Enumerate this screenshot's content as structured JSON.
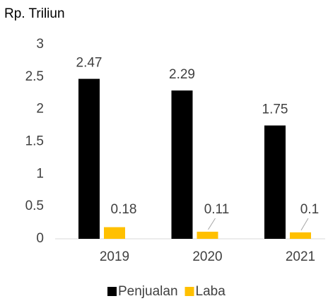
{
  "chart_data": {
    "type": "bar",
    "y_axis_label": "Rp. Triliun",
    "categories": [
      "2019",
      "2020",
      "2021"
    ],
    "series": [
      {
        "name": "Penjualan",
        "color": "#000000",
        "values": [
          2.47,
          2.29,
          1.75
        ]
      },
      {
        "name": "Laba",
        "color": "#ffc000",
        "values": [
          0.18,
          0.11,
          0.1
        ]
      }
    ],
    "ylim": [
      0,
      3
    ],
    "yticks": [
      0,
      0.5,
      1,
      1.5,
      2,
      2.5,
      3
    ],
    "grid": false,
    "legend": "bottom"
  }
}
